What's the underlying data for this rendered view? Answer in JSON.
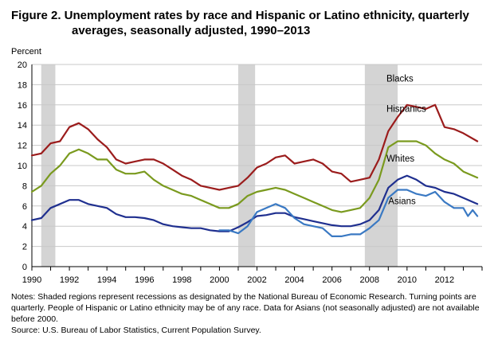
{
  "figure": {
    "title_line1": "Figure 2. Unemployment rates by race and Hispanic or Latino ethnicity, quarterly",
    "title_line2": "averages, seasonally adjusted, 1990–2013",
    "notes": "Notes: Shaded regions represent recessions as designated by the National Bureau of Economic Research. Turning points are quarterly.  People of Hispanic or Latino ethnicity may be of any race. Data for Asians (not seasonally adjusted) are not available before 2000.",
    "source": "Source: U.S. Bureau of Labor Statistics, Current Population Survey."
  },
  "chart_data": {
    "type": "line",
    "title": "Figure 2. Unemployment rates by race and Hispanic or Latino ethnicity, quarterly averages, seasonally adjusted, 1990–2013",
    "ylabel": "Percent",
    "xlabel": "",
    "ylim": [
      0,
      20
    ],
    "yticks": [
      0,
      2,
      4,
      6,
      8,
      10,
      12,
      14,
      16,
      18,
      20
    ],
    "xlim": [
      1990,
      2014
    ],
    "xticks": [
      1990,
      1992,
      1994,
      1996,
      1998,
      2000,
      2002,
      2004,
      2006,
      2008,
      2010,
      2012
    ],
    "grid": true,
    "recessions": [
      [
        1990.5,
        1991.25
      ],
      [
        2001.0,
        2001.9
      ],
      [
        2007.75,
        2009.5
      ]
    ],
    "series": [
      {
        "name": "Blacks",
        "color": "#9b1c1c",
        "x": [
          1990,
          1990.5,
          1991,
          1991.5,
          1992,
          1992.5,
          1993,
          1993.5,
          1994,
          1994.5,
          1995,
          1995.5,
          1996,
          1996.5,
          1997,
          1997.5,
          1998,
          1998.5,
          1999,
          1999.5,
          2000,
          2000.5,
          2001,
          2001.5,
          2002,
          2002.5,
          2003,
          2003.5,
          2004,
          2004.5,
          2005,
          2005.5,
          2006,
          2006.5,
          2007,
          2007.5,
          2008,
          2008.5,
          2009,
          2009.5,
          2010,
          2010.5,
          2011,
          2011.5,
          2012,
          2012.5,
          2013,
          2013.75
        ],
        "values": [
          11.0,
          11.2,
          12.2,
          12.4,
          13.8,
          14.2,
          13.6,
          12.6,
          11.8,
          10.6,
          10.2,
          10.4,
          10.6,
          10.6,
          10.2,
          9.6,
          9.0,
          8.6,
          8.0,
          7.8,
          7.6,
          7.8,
          8.0,
          8.8,
          9.8,
          10.2,
          10.8,
          11.0,
          10.2,
          10.4,
          10.6,
          10.2,
          9.4,
          9.2,
          8.4,
          8.6,
          8.8,
          10.6,
          13.4,
          14.8,
          16.0,
          15.8,
          15.6,
          16.0,
          13.8,
          13.6,
          13.2,
          12.4
        ]
      },
      {
        "name": "Hispanics",
        "color": "#7a9a1e",
        "x": [
          1990,
          1990.5,
          1991,
          1991.5,
          1992,
          1992.5,
          1993,
          1993.5,
          1994,
          1994.5,
          1995,
          1995.5,
          1996,
          1996.5,
          1997,
          1997.5,
          1998,
          1998.5,
          1999,
          1999.5,
          2000,
          2000.5,
          2001,
          2001.5,
          2002,
          2002.5,
          2003,
          2003.5,
          2004,
          2004.5,
          2005,
          2005.5,
          2006,
          2006.5,
          2007,
          2007.5,
          2008,
          2008.5,
          2009,
          2009.5,
          2010,
          2010.5,
          2011,
          2011.5,
          2012,
          2012.5,
          2013,
          2013.75
        ],
        "values": [
          7.4,
          8.0,
          9.2,
          10.0,
          11.2,
          11.6,
          11.2,
          10.6,
          10.6,
          9.6,
          9.2,
          9.2,
          9.4,
          8.6,
          8.0,
          7.6,
          7.2,
          7.0,
          6.6,
          6.2,
          5.8,
          5.8,
          6.2,
          7.0,
          7.4,
          7.6,
          7.8,
          7.6,
          7.2,
          6.8,
          6.4,
          6.0,
          5.6,
          5.4,
          5.6,
          5.8,
          6.8,
          8.6,
          11.8,
          12.4,
          12.4,
          12.4,
          12.0,
          11.2,
          10.6,
          10.2,
          9.4,
          8.8
        ]
      },
      {
        "name": "Whites",
        "color": "#1f2f8f",
        "x": [
          1990,
          1990.5,
          1991,
          1991.5,
          1992,
          1992.5,
          1993,
          1993.5,
          1994,
          1994.5,
          1995,
          1995.5,
          1996,
          1996.5,
          1997,
          1997.5,
          1998,
          1998.5,
          1999,
          1999.5,
          2000,
          2000.5,
          2001,
          2001.5,
          2002,
          2002.5,
          2003,
          2003.5,
          2004,
          2004.5,
          2005,
          2005.5,
          2006,
          2006.5,
          2007,
          2007.5,
          2008,
          2008.5,
          2009,
          2009.5,
          2010,
          2010.5,
          2011,
          2011.5,
          2012,
          2012.5,
          2013,
          2013.75
        ],
        "values": [
          4.6,
          4.8,
          5.8,
          6.2,
          6.6,
          6.6,
          6.2,
          6.0,
          5.8,
          5.2,
          4.9,
          4.9,
          4.8,
          4.6,
          4.2,
          4.0,
          3.9,
          3.8,
          3.8,
          3.6,
          3.5,
          3.5,
          3.9,
          4.4,
          5.0,
          5.1,
          5.3,
          5.3,
          4.9,
          4.7,
          4.5,
          4.3,
          4.1,
          4.0,
          4.0,
          4.2,
          4.6,
          5.6,
          7.8,
          8.6,
          9.0,
          8.6,
          8.0,
          7.8,
          7.4,
          7.2,
          6.8,
          6.2
        ]
      },
      {
        "name": "Asians",
        "color": "#3a79c3",
        "x": [
          2000,
          2000.5,
          2001,
          2001.5,
          2002,
          2002.5,
          2003,
          2003.5,
          2004,
          2004.5,
          2005,
          2005.5,
          2006,
          2006.5,
          2007,
          2007.5,
          2008,
          2008.5,
          2009,
          2009.5,
          2010,
          2010.5,
          2011,
          2011.5,
          2012,
          2012.5,
          2013,
          2013.25,
          2013.5,
          2013.75
        ],
        "values": [
          3.6,
          3.6,
          3.3,
          4.0,
          5.4,
          5.8,
          6.2,
          5.8,
          4.8,
          4.2,
          4.0,
          3.8,
          3.0,
          3.0,
          3.2,
          3.2,
          3.8,
          4.6,
          6.8,
          7.6,
          7.6,
          7.2,
          7.0,
          7.4,
          6.4,
          5.8,
          5.8,
          5.0,
          5.6,
          5.0
        ]
      }
    ]
  }
}
